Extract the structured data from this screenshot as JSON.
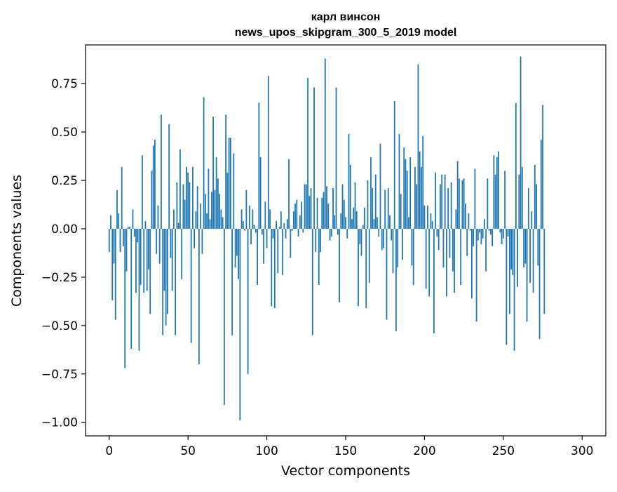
{
  "chart_data": {
    "type": "bar",
    "title_line1": "карл винсон",
    "title_line2": "news_upos_skipgram_300_5_2019 model",
    "xlabel": "Vector components",
    "ylabel": "Components values",
    "xlim": [
      -15,
      315
    ],
    "ylim": [
      -1.07,
      0.95
    ],
    "x_ticks": [
      0,
      50,
      100,
      150,
      200,
      250,
      300
    ],
    "y_ticks": [
      -1.0,
      -0.75,
      -0.5,
      -0.25,
      0.0,
      0.25,
      0.5,
      0.75
    ],
    "x_tick_labels": [
      "0",
      "50",
      "100",
      "150",
      "200",
      "250",
      "300"
    ],
    "y_tick_labels": [
      "−1.00",
      "−0.75",
      "−0.50",
      "−0.25",
      "0.00",
      "0.25",
      "0.50",
      "0.75"
    ],
    "bar_color": "#1f77b4",
    "grid": false,
    "values": [
      -0.12,
      0.07,
      -0.37,
      -0.18,
      -0.47,
      0.2,
      0.08,
      -0.12,
      0.32,
      -0.09,
      -0.72,
      -0.22,
      0.01,
      0.01,
      -0.62,
      0.1,
      -0.04,
      -0.33,
      -0.07,
      -0.63,
      -0.29,
      0.38,
      -0.33,
      0.04,
      -0.32,
      -0.21,
      -0.44,
      0.3,
      0.43,
      0.46,
      -0.13,
      0.12,
      -0.18,
      0.59,
      -0.55,
      -0.32,
      -0.5,
      -0.44,
      0.54,
      -0.15,
      -0.32,
      0.1,
      -0.55,
      0.24,
      0.03,
      0.41,
      -0.26,
      0.23,
      0.15,
      0.32,
      0.29,
      0.24,
      -0.59,
      0.32,
      -0.1,
      0.09,
      0.22,
      -0.7,
      0.13,
      -0.13,
      0.68,
      0.18,
      0.08,
      0.31,
      0.05,
      0.19,
      0.58,
      0.2,
      0.37,
      0.26,
      0.18,
      0.1,
      0.06,
      -0.91,
      0.59,
      0.29,
      0.47,
      0.47,
      -0.55,
      0.39,
      -0.2,
      -0.14,
      -0.26,
      -0.99,
      0.1,
      0.04,
      -0.01,
      0.2,
      -0.75,
      0.12,
      -0.08,
      0.1,
      0.02,
      -0.02,
      -0.29,
      0.65,
      0.37,
      -0.03,
      -0.18,
      0.14,
      -0.1,
      0.79,
      0.1,
      -0.4,
      -0.05,
      -0.41,
      0.04,
      -0.23,
      0.01,
      0.09,
      -0.24,
      0.03,
      -0.05,
      0.05,
      0.36,
      -0.15,
      -0.01,
      0.09,
      0.13,
      0.15,
      -0.04,
      0.07,
      0.14,
      -0.02,
      0.23,
      0.23,
      0.78,
      0.17,
      0.21,
      -0.55,
      0.73,
      -0.12,
      0.16,
      -0.29,
      -0.12,
      0.16,
      0.19,
      0.88,
      0.22,
      0.13,
      -0.06,
      -0.04,
      0.21,
      0.07,
      0.73,
      -0.03,
      -0.38,
      0.08,
      0.23,
      0.15,
      0.06,
      -0.05,
      0.49,
      0.33,
      0.05,
      0.11,
      0.24,
      0.09,
      -0.4,
      -0.08,
      -0.14,
      0.02,
      0.11,
      -0.41,
      0.25,
      -0.28,
      0.37,
      0.21,
      0.05,
      0.28,
      0.06,
      -0.04,
      0.44,
      -0.11,
      -0.1,
      0.2,
      -0.47,
      0.21,
      0.07,
      -0.06,
      -0.23,
      0.66,
      -0.53,
      -0.2,
      0.49,
      0.18,
      -0.16,
      0.42,
      0.36,
      0.3,
      0.06,
      0.37,
      -0.19,
      -0.29,
      0.32,
      0.23,
      0.85,
      0.4,
      0.32,
      0.48,
      0.12,
      -0.31,
      0.12,
      -0.35,
      0.08,
      0.04,
      -0.54,
      0.29,
      -0.04,
      -0.11,
      0.23,
      0.28,
      -0.2,
      0.28,
      -0.35,
      0.21,
      -0.15,
      0.24,
      -0.22,
      -0.33,
      0.1,
      0.35,
      0.26,
      -0.29,
      0.25,
      0.26,
      0.13,
      -0.14,
      0.08,
      -0.01,
      -0.36,
      -0.09,
      0.31,
      -0.48,
      -0.06,
      -0.02,
      -0.08,
      -0.05,
      0.05,
      -0.22,
      0.26,
      -0.01,
      -0.03,
      -0.09,
      0.38,
      0.28,
      0.37,
      0.4,
      -0.02,
      -0.08,
      -0.05,
      0.3,
      -0.6,
      -0.04,
      -0.44,
      -0.21,
      -0.24,
      -0.63,
      0.65,
      -0.3,
      0.28,
      0.89,
      0.32,
      -0.2,
      -0.18,
      -0.48,
      0.21,
      -0.28,
      0.09,
      -0.33,
      0.33,
      0.23,
      -0.19,
      -0.57,
      0.46,
      0.64,
      -0.44
    ]
  }
}
